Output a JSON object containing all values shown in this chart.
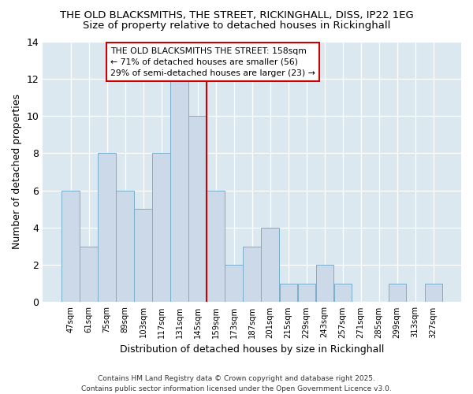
{
  "title_line1": "THE OLD BLACKSMITHS, THE STREET, RICKINGHALL, DISS, IP22 1EG",
  "title_line2": "Size of property relative to detached houses in Rickinghall",
  "xlabel": "Distribution of detached houses by size in Rickinghall",
  "ylabel": "Number of detached properties",
  "footer": "Contains HM Land Registry data © Crown copyright and database right 2025.\nContains public sector information licensed under the Open Government Licence v3.0.",
  "categories": [
    "47sqm",
    "61sqm",
    "75sqm",
    "89sqm",
    "103sqm",
    "117sqm",
    "131sqm",
    "145sqm",
    "159sqm",
    "173sqm",
    "187sqm",
    "201sqm",
    "215sqm",
    "229sqm",
    "243sqm",
    "257sqm",
    "271sqm",
    "285sqm",
    "299sqm",
    "313sqm",
    "327sqm"
  ],
  "values": [
    6,
    3,
    8,
    6,
    5,
    8,
    12,
    10,
    6,
    2,
    3,
    4,
    1,
    1,
    2,
    1,
    0,
    0,
    1,
    0,
    1
  ],
  "bar_color": "#ccd9e8",
  "bar_edge_color": "#7aaecc",
  "highlight_line_color": "#cc0000",
  "annotation_text": "THE OLD BLACKSMITHS THE STREET: 158sqm\n← 71% of detached houses are smaller (56)\n29% of semi-detached houses are larger (23) →",
  "annotation_box_color": "#ffffff",
  "annotation_border_color": "#cc0000",
  "figure_background_color": "#ffffff",
  "plot_background_color": "#dce8f0",
  "ylim": [
    0,
    14
  ],
  "yticks": [
    0,
    2,
    4,
    6,
    8,
    10,
    12,
    14
  ],
  "highlight_bar_index": 8,
  "grid_color": "#ffffff",
  "title1_fontsize": 9.5,
  "title2_fontsize": 9.5
}
